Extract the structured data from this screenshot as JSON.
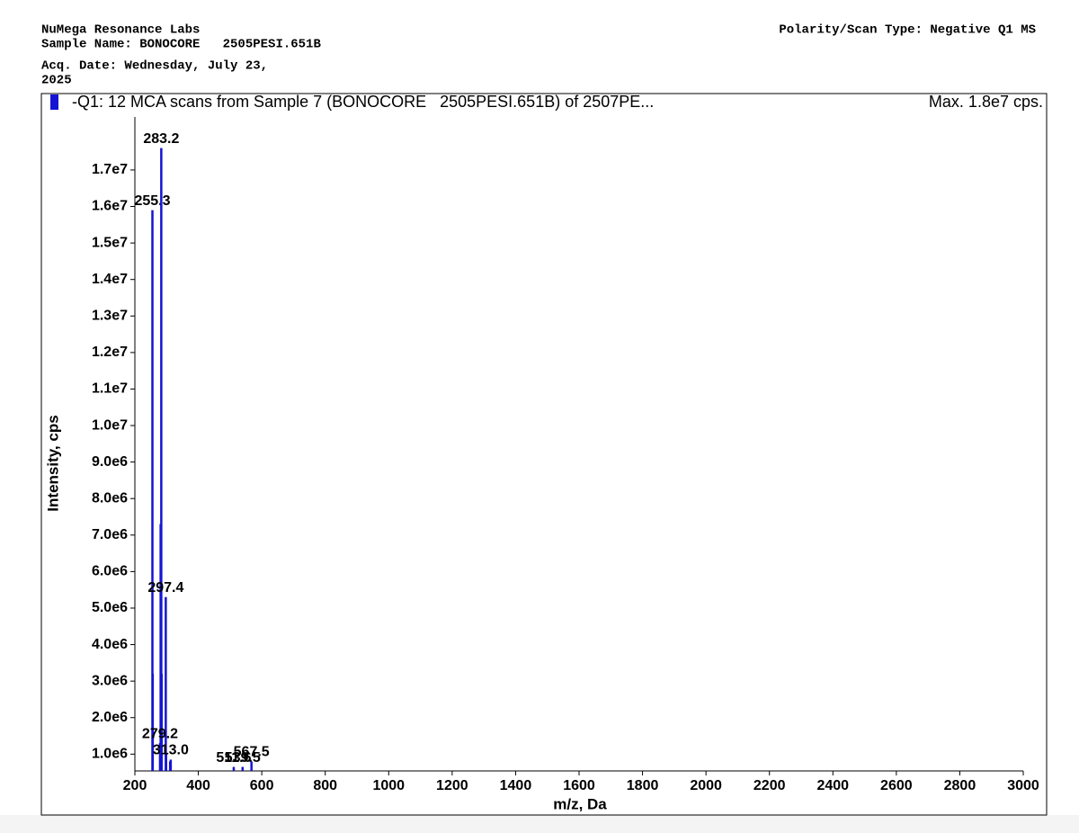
{
  "header": {
    "lab": "NuMega Resonance Labs",
    "sample_name": "Sample Name: BONOCORE   2505PESI.651B",
    "acq_date_line1": "Acq. Date: Wednesday, July 23,",
    "acq_date_line2": "2025",
    "polarity": "Polarity/Scan Type: Negative Q1 MS"
  },
  "chart_data": {
    "type": "stick",
    "legend_label": "-Q1: 12 MCA scans from Sample 7 (BONOCORE   2505PESI.651B) of 2507PE...",
    "max_label": "Max. 1.8e7 cps.",
    "x_label": "m/z, Da",
    "y_label": "Intensity, cps",
    "color": "#1414d2",
    "peaks": {
      "x": [
        255.3,
        283.2,
        297.4,
        279.2,
        313.0,
        511.6,
        539.5,
        567.5
      ],
      "labels": [
        "255.3",
        "283.2",
        "297.4",
        "279.2",
        "313.0",
        "511.6",
        "539.5",
        "567.5"
      ],
      "values": [
        15900000,
        17600000,
        5300000,
        1300000,
        850000,
        650000,
        650000,
        800000
      ]
    },
    "minor_peaks": {
      "x": [
        256.3,
        281.2,
        284.2,
        298.4,
        311.0
      ],
      "values": [
        3200000,
        7300000,
        3200000,
        1000000,
        800000
      ]
    },
    "xlim": [
      200,
      3000
    ],
    "xticks": [
      200,
      400,
      600,
      800,
      1000,
      1200,
      1400,
      1600,
      1800,
      2000,
      2200,
      2400,
      2600,
      2800,
      3000
    ],
    "ylim": [
      540000,
      18600000
    ],
    "yticks": [
      {
        "value": 1000000,
        "label": "1.0e6"
      },
      {
        "value": 2000000,
        "label": "2.0e6"
      },
      {
        "value": 3000000,
        "label": "3.0e6"
      },
      {
        "value": 4000000,
        "label": "4.0e6"
      },
      {
        "value": 5000000,
        "label": "5.0e6"
      },
      {
        "value": 6000000,
        "label": "6.0e6"
      },
      {
        "value": 7000000,
        "label": "7.0e6"
      },
      {
        "value": 8000000,
        "label": "8.0e6"
      },
      {
        "value": 9000000,
        "label": "9.0e6"
      },
      {
        "value": 10000000,
        "label": "1.0e7"
      },
      {
        "value": 11000000,
        "label": "1.1e7"
      },
      {
        "value": 12000000,
        "label": "1.2e7"
      },
      {
        "value": 13000000,
        "label": "1.3e7"
      },
      {
        "value": 14000000,
        "label": "1.4e7"
      },
      {
        "value": 15000000,
        "label": "1.5e7"
      },
      {
        "value": 16000000,
        "label": "1.6e7"
      },
      {
        "value": 17000000,
        "label": "1.7e7"
      }
    ]
  }
}
